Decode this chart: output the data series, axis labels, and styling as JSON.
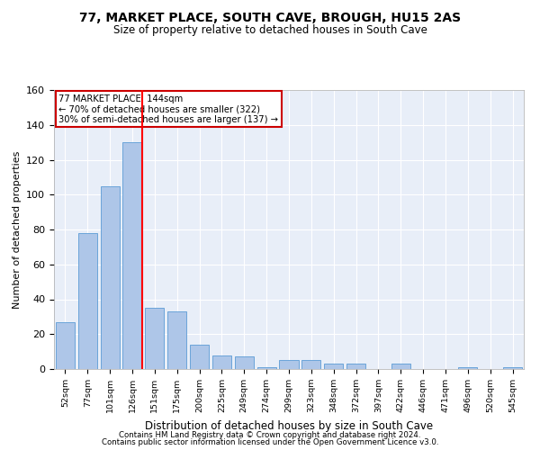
{
  "title1": "77, MARKET PLACE, SOUTH CAVE, BROUGH, HU15 2AS",
  "title2": "Size of property relative to detached houses in South Cave",
  "xlabel": "Distribution of detached houses by size in South Cave",
  "ylabel": "Number of detached properties",
  "categories": [
    "52sqm",
    "77sqm",
    "101sqm",
    "126sqm",
    "151sqm",
    "175sqm",
    "200sqm",
    "225sqm",
    "249sqm",
    "274sqm",
    "299sqm",
    "323sqm",
    "348sqm",
    "372sqm",
    "397sqm",
    "422sqm",
    "446sqm",
    "471sqm",
    "496sqm",
    "520sqm",
    "545sqm"
  ],
  "values": [
    27,
    78,
    105,
    130,
    35,
    33,
    14,
    8,
    7,
    1,
    5,
    5,
    3,
    3,
    0,
    3,
    0,
    0,
    1,
    0,
    1
  ],
  "bar_color": "#aec6e8",
  "bar_edge_color": "#5b9bd5",
  "ref_line_bin": 3,
  "ref_line_label": "77 MARKET PLACE: 144sqm",
  "annotation_line1": "← 70% of detached houses are smaller (322)",
  "annotation_line2": "30% of semi-detached houses are larger (137) →",
  "box_edge_color": "#cc0000",
  "ylim": [
    0,
    160
  ],
  "yticks": [
    0,
    20,
    40,
    60,
    80,
    100,
    120,
    140,
    160
  ],
  "footer1": "Contains HM Land Registry data © Crown copyright and database right 2024.",
  "footer2": "Contains public sector information licensed under the Open Government Licence v3.0.",
  "plot_bg": "#e8eef8"
}
